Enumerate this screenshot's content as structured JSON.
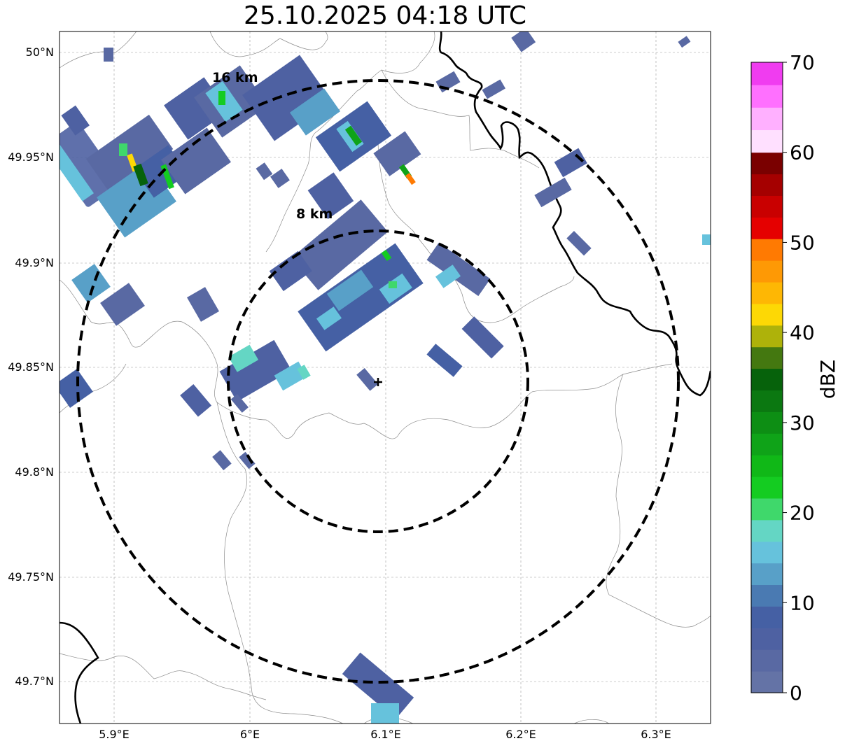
{
  "title": "25.10.2025 04:18 UTC",
  "map": {
    "lat_ticks": [
      "50°N",
      "49.95°N",
      "49.9°N",
      "49.85°N",
      "49.8°N",
      "49.75°N",
      "49.7°N"
    ],
    "lon_ticks": [
      "5.9°E",
      "6°E",
      "6.1°E",
      "6.2°E",
      "6.3°E"
    ],
    "range_rings": [
      {
        "label": "8 km",
        "radius_km": 8
      },
      {
        "label": "16 km",
        "radius_km": 16
      }
    ],
    "radar_site": {
      "lat": 49.845,
      "lon": 6.095
    }
  },
  "colorbar": {
    "title": "dBZ",
    "tick_labels": [
      "0",
      "10",
      "20",
      "30",
      "40",
      "50",
      "60",
      "70"
    ],
    "min": 0,
    "max": 70,
    "colors": [
      "#6473a6",
      "#5969a3",
      "#4e61a2",
      "#4560a4",
      "#4a7ab2",
      "#58a0c8",
      "#66c2dc",
      "#64d6c4",
      "#3fd86b",
      "#14cc21",
      "#10b817",
      "#0fa318",
      "#0d8e14",
      "#0b7811",
      "#06620b",
      "#447810",
      "#aeb20a",
      "#fdd805",
      "#feb704",
      "#fe9905",
      "#ff7a02",
      "#e50000",
      "#c90000",
      "#a50000",
      "#7a0000",
      "#ffe0ff",
      "#ffb0ff",
      "#ff70ff",
      "#f03cf0"
    ]
  }
}
